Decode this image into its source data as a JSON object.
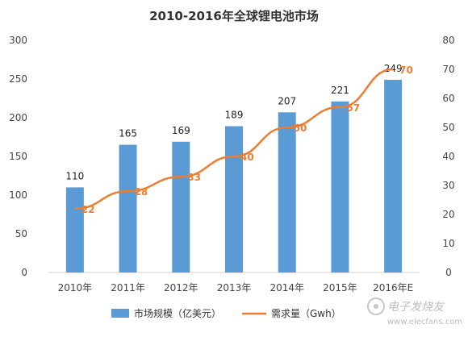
{
  "chart_data": {
    "type": "bar",
    "title": "2010-2016年全球锂电池市场",
    "categories": [
      "2010年",
      "2011年",
      "2012年",
      "2013年",
      "2014年",
      "2015年",
      "2016年E"
    ],
    "series": [
      {
        "name": "市场规模（亿美元）",
        "type": "bar",
        "axis": "left",
        "values": [
          110,
          165,
          169,
          189,
          207,
          221,
          249
        ],
        "color": "#5b9bd5"
      },
      {
        "name": "需求量（Gwh）",
        "type": "line",
        "axis": "right",
        "values": [
          22,
          28,
          33,
          40,
          50,
          57,
          70
        ],
        "color": "#ed7d31"
      }
    ],
    "ylim_left": [
      0,
      300
    ],
    "ylim_right": [
      0,
      80
    ],
    "yticks_left": [
      0,
      50,
      100,
      150,
      200,
      250,
      300
    ],
    "yticks_right": [
      0,
      10,
      20,
      30,
      40,
      50,
      60,
      70,
      80
    ],
    "grid": false,
    "legend": "bottom",
    "colors": {
      "bar_label": "#222222",
      "line_label": "#ed7d31",
      "axis_text": "#444444"
    }
  },
  "watermark": {
    "text": "电子发烧友",
    "url": "www.elecfans.com"
  }
}
